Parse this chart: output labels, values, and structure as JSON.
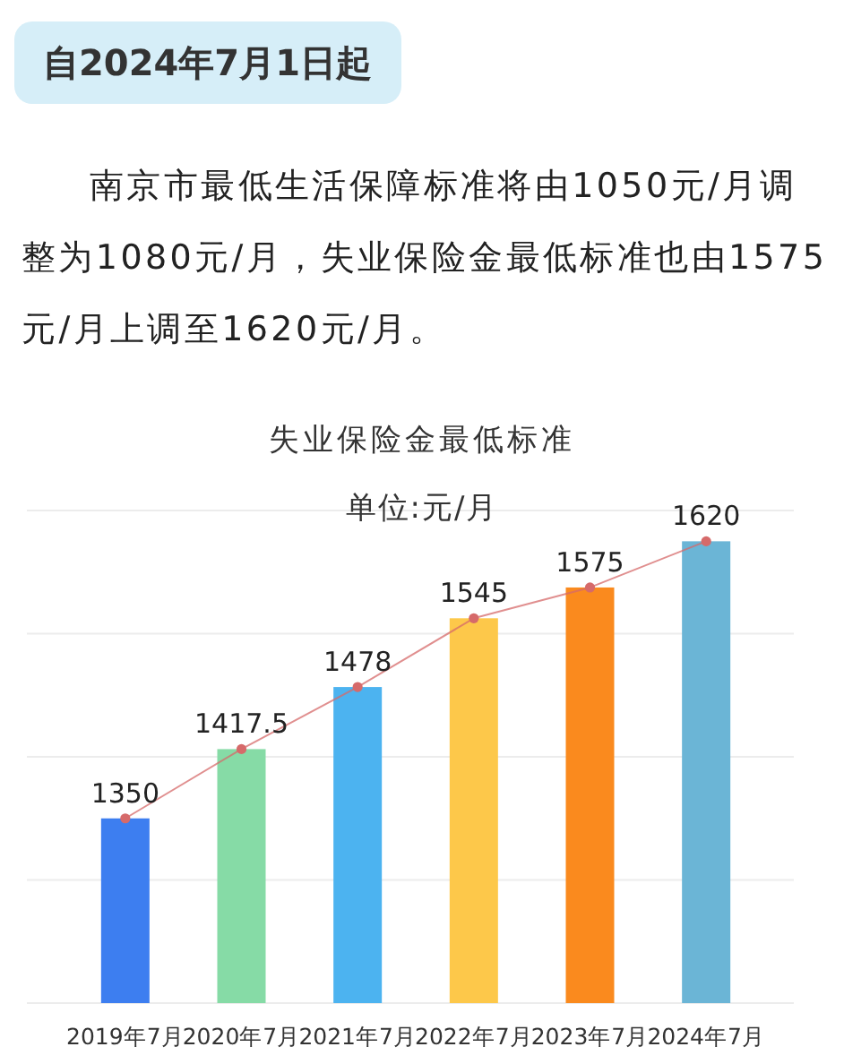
{
  "chart_data": {
    "type": "bar",
    "title": "失业保险金最低标准",
    "subtitle": "单位:元/月",
    "annotations": [
      "自2024年7月1日起",
      "南京市最低生活保障标准将由1050元/月调整为1080元/月，失业保险金最低标准也由1575元/月上调至1620元/月。"
    ],
    "categories": [
      "2019年7月",
      "2020年7月",
      "2021年7月",
      "2022年7月",
      "2023年7月",
      "2024年7月"
    ],
    "series": [
      {
        "colors": [
          "#3d7ef0",
          "#86dba6",
          "#4cb3f0",
          "#fdc84a",
          "#fa8a1e",
          "#6bb5d6"
        ],
        "values": [
          1350,
          1417.5,
          1478,
          1545,
          1575,
          1620
        ]
      },
      {
        "type": "line",
        "color": "#d66a6a",
        "values": [
          1350,
          1417.5,
          1478,
          1545,
          1575,
          1620
        ],
        "value_labels": [
          "1350",
          "1417.5",
          "1478",
          "1545",
          "1575",
          "1620"
        ]
      }
    ],
    "ylim": [
      1170,
      1650
    ],
    "yticks": [
      {
        "value": 1170,
        "label": null
      },
      {
        "value": 1290,
        "label": null
      },
      {
        "value": 1410,
        "label": null
      },
      {
        "value": 1530,
        "label": null
      },
      {
        "value": 1650,
        "label": null
      }
    ],
    "grid": "y",
    "tick_labels": "x",
    "marker": "circle"
  }
}
